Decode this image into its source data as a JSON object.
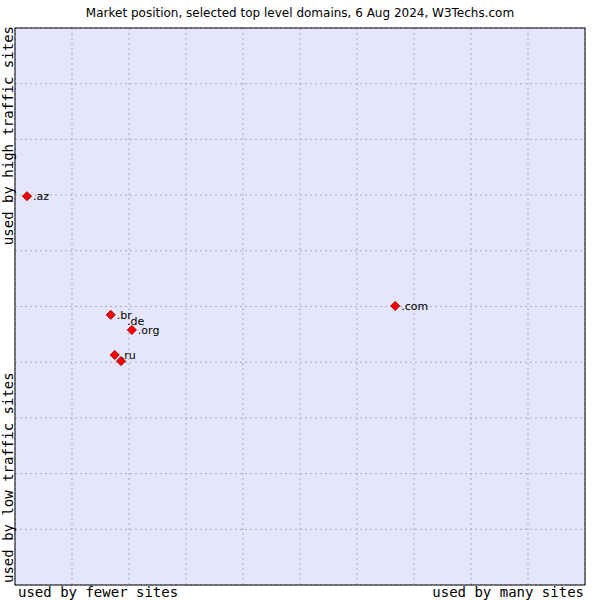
{
  "chart_data": {
    "type": "scatter",
    "title": "Market position, selected top level domains, 6 Aug 2024, W3Techs.com",
    "x_label_left": "used by fewer sites",
    "x_label_right": "used by many sites",
    "y_label_bottom": "used by low traffic sites",
    "y_label_top": "used by high traffic sites",
    "categories": [
      ".az",
      ".br",
      ".org",
      ".ru",
      ".de",
      ".com"
    ],
    "x": [
      2.1,
      16.8,
      20.5,
      17.5,
      18.6,
      66.7
    ],
    "values": [
      69.8,
      48.5,
      45.8,
      41.3,
      40.2,
      50.1
    ],
    "color": "#ff0000",
    "marker": "diamond",
    "xlim": [
      0,
      100
    ],
    "ylim": [
      0,
      100
    ],
    "xticks": [
      0,
      10,
      20,
      30,
      40,
      50,
      60,
      70,
      80,
      90,
      100
    ],
    "yticks": [
      0,
      10,
      20,
      30,
      40,
      50,
      60,
      70,
      80,
      90,
      100
    ],
    "grid": true,
    "tick_labels": false
  }
}
